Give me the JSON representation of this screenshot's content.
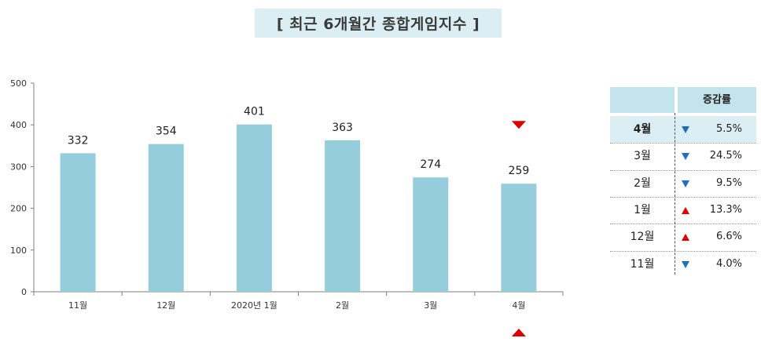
{
  "title": "[ 최근 6개월간 종합게임지수 ]",
  "colors": {
    "bar": "#96cddd",
    "up": "#e00000",
    "down": "#1f6fbf",
    "title_bg": "#dbeef3",
    "table_header": "#c3e4ec"
  },
  "chart_data": {
    "type": "bar",
    "title": "[ 최근 6개월간 종합게임지수 ]",
    "categories": [
      "11월",
      "12월",
      "2020년 1월",
      "2월",
      "3월",
      "4월"
    ],
    "values": [
      332,
      354,
      401,
      363,
      274,
      259
    ],
    "ylim": [
      0,
      500
    ],
    "yticks": [
      0,
      100,
      200,
      300,
      400,
      500
    ],
    "xlabel": "",
    "ylabel": "",
    "grid": false,
    "markers": [
      {
        "category": "4월",
        "direction": "down",
        "icon": "red-down-triangle",
        "placement": "above"
      },
      {
        "category": "4월",
        "direction": "up",
        "icon": "red-up-triangle",
        "placement": "below"
      }
    ]
  },
  "change_table": {
    "header": "증감률",
    "rows": [
      {
        "month": "4월",
        "direction": "down",
        "rate": "5.5%",
        "highlight": true
      },
      {
        "month": "3월",
        "direction": "down",
        "rate": "24.5%",
        "highlight": false
      },
      {
        "month": "2월",
        "direction": "down",
        "rate": "9.5%",
        "highlight": false
      },
      {
        "month": "1월",
        "direction": "up",
        "rate": "13.3%",
        "highlight": false
      },
      {
        "month": "12월",
        "direction": "up",
        "rate": "6.6%",
        "highlight": false
      },
      {
        "month": "11월",
        "direction": "down",
        "rate": "4.0%",
        "highlight": false
      }
    ]
  }
}
